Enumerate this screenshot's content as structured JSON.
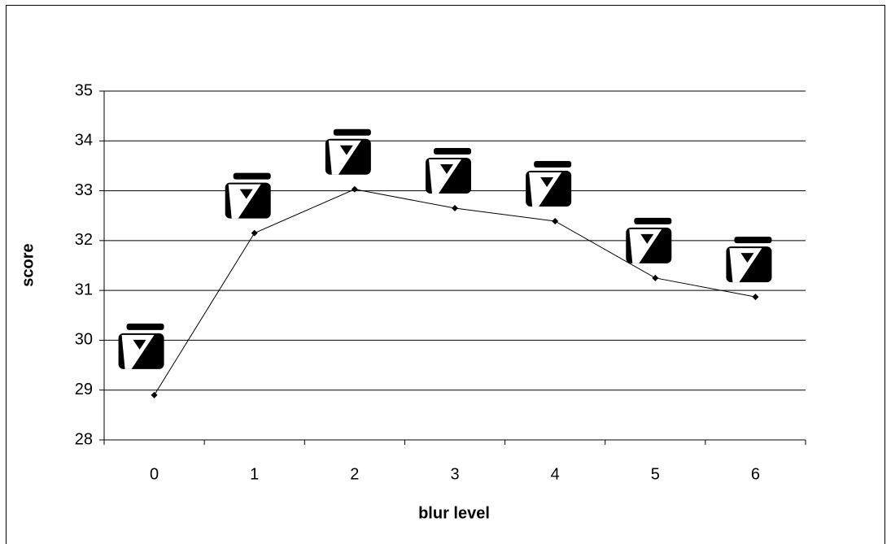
{
  "chart_data": {
    "type": "line",
    "x_label": "blur level",
    "y_label": "score",
    "categories": [
      "0",
      "1",
      "2",
      "3",
      "4",
      "5",
      "6"
    ],
    "series": [
      {
        "name": "score",
        "color": "#000000",
        "values": [
          28.9,
          32.15,
          33.03,
          32.65,
          32.39,
          31.25,
          30.87
        ]
      }
    ],
    "ylim": [
      28,
      35
    ],
    "yticks": [
      28,
      29,
      30,
      31,
      32,
      33,
      34,
      35
    ],
    "grid": true
  }
}
